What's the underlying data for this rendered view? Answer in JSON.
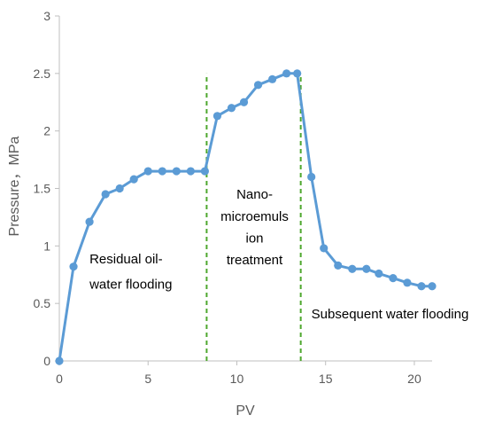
{
  "chart_data": {
    "type": "line",
    "xlabel": "PV",
    "ylabel": "Pressure，MPa",
    "xlim": [
      0,
      21
    ],
    "ylim": [
      0,
      3
    ],
    "xticks": [
      "0",
      "5",
      "10",
      "15",
      "20"
    ],
    "yticks": [
      "0",
      "0.5",
      "1",
      "1.5",
      "2",
      "2.5",
      "3"
    ],
    "grid": false,
    "series": [
      {
        "x": [
          0,
          0.8,
          1.7,
          2.6,
          3.4,
          4.2,
          5.0,
          5.8,
          6.6,
          7.4,
          8.2,
          8.9,
          9.7,
          10.4,
          11.2,
          12.0,
          12.8,
          13.4,
          14.2,
          14.9,
          15.7,
          16.5,
          17.3,
          18.0,
          18.8,
          19.6,
          20.4,
          21.0
        ],
        "y": [
          0,
          0.82,
          1.21,
          1.45,
          1.5,
          1.58,
          1.65,
          1.65,
          1.65,
          1.65,
          1.65,
          2.13,
          2.2,
          2.25,
          2.4,
          2.45,
          2.5,
          2.5,
          1.6,
          0.98,
          0.83,
          0.8,
          0.8,
          0.76,
          0.72,
          0.68,
          0.65,
          0.65
        ]
      }
    ],
    "vlines": [
      8.3,
      13.6
    ],
    "annotations": [
      {
        "lines": [
          "Residual oil-",
          "water flooding"
        ],
        "anchor": "start",
        "ax": 1.7,
        "ay": [
          0.85,
          0.63
        ]
      },
      {
        "lines": [
          "Nano-",
          "microemuls",
          "ion",
          "treatment"
        ],
        "anchor": "middle",
        "ax": 11.0,
        "ay": [
          1.41,
          1.22,
          1.03,
          0.84
        ]
      },
      {
        "lines": [
          "Subsequent water flooding"
        ],
        "anchor": "start",
        "ax": 14.2,
        "ay": [
          0.37
        ]
      }
    ],
    "colors": {
      "line": "#5B9BD5",
      "vline": "#4EA72E",
      "axis": "#BFBFBF",
      "text": "#595959"
    }
  }
}
